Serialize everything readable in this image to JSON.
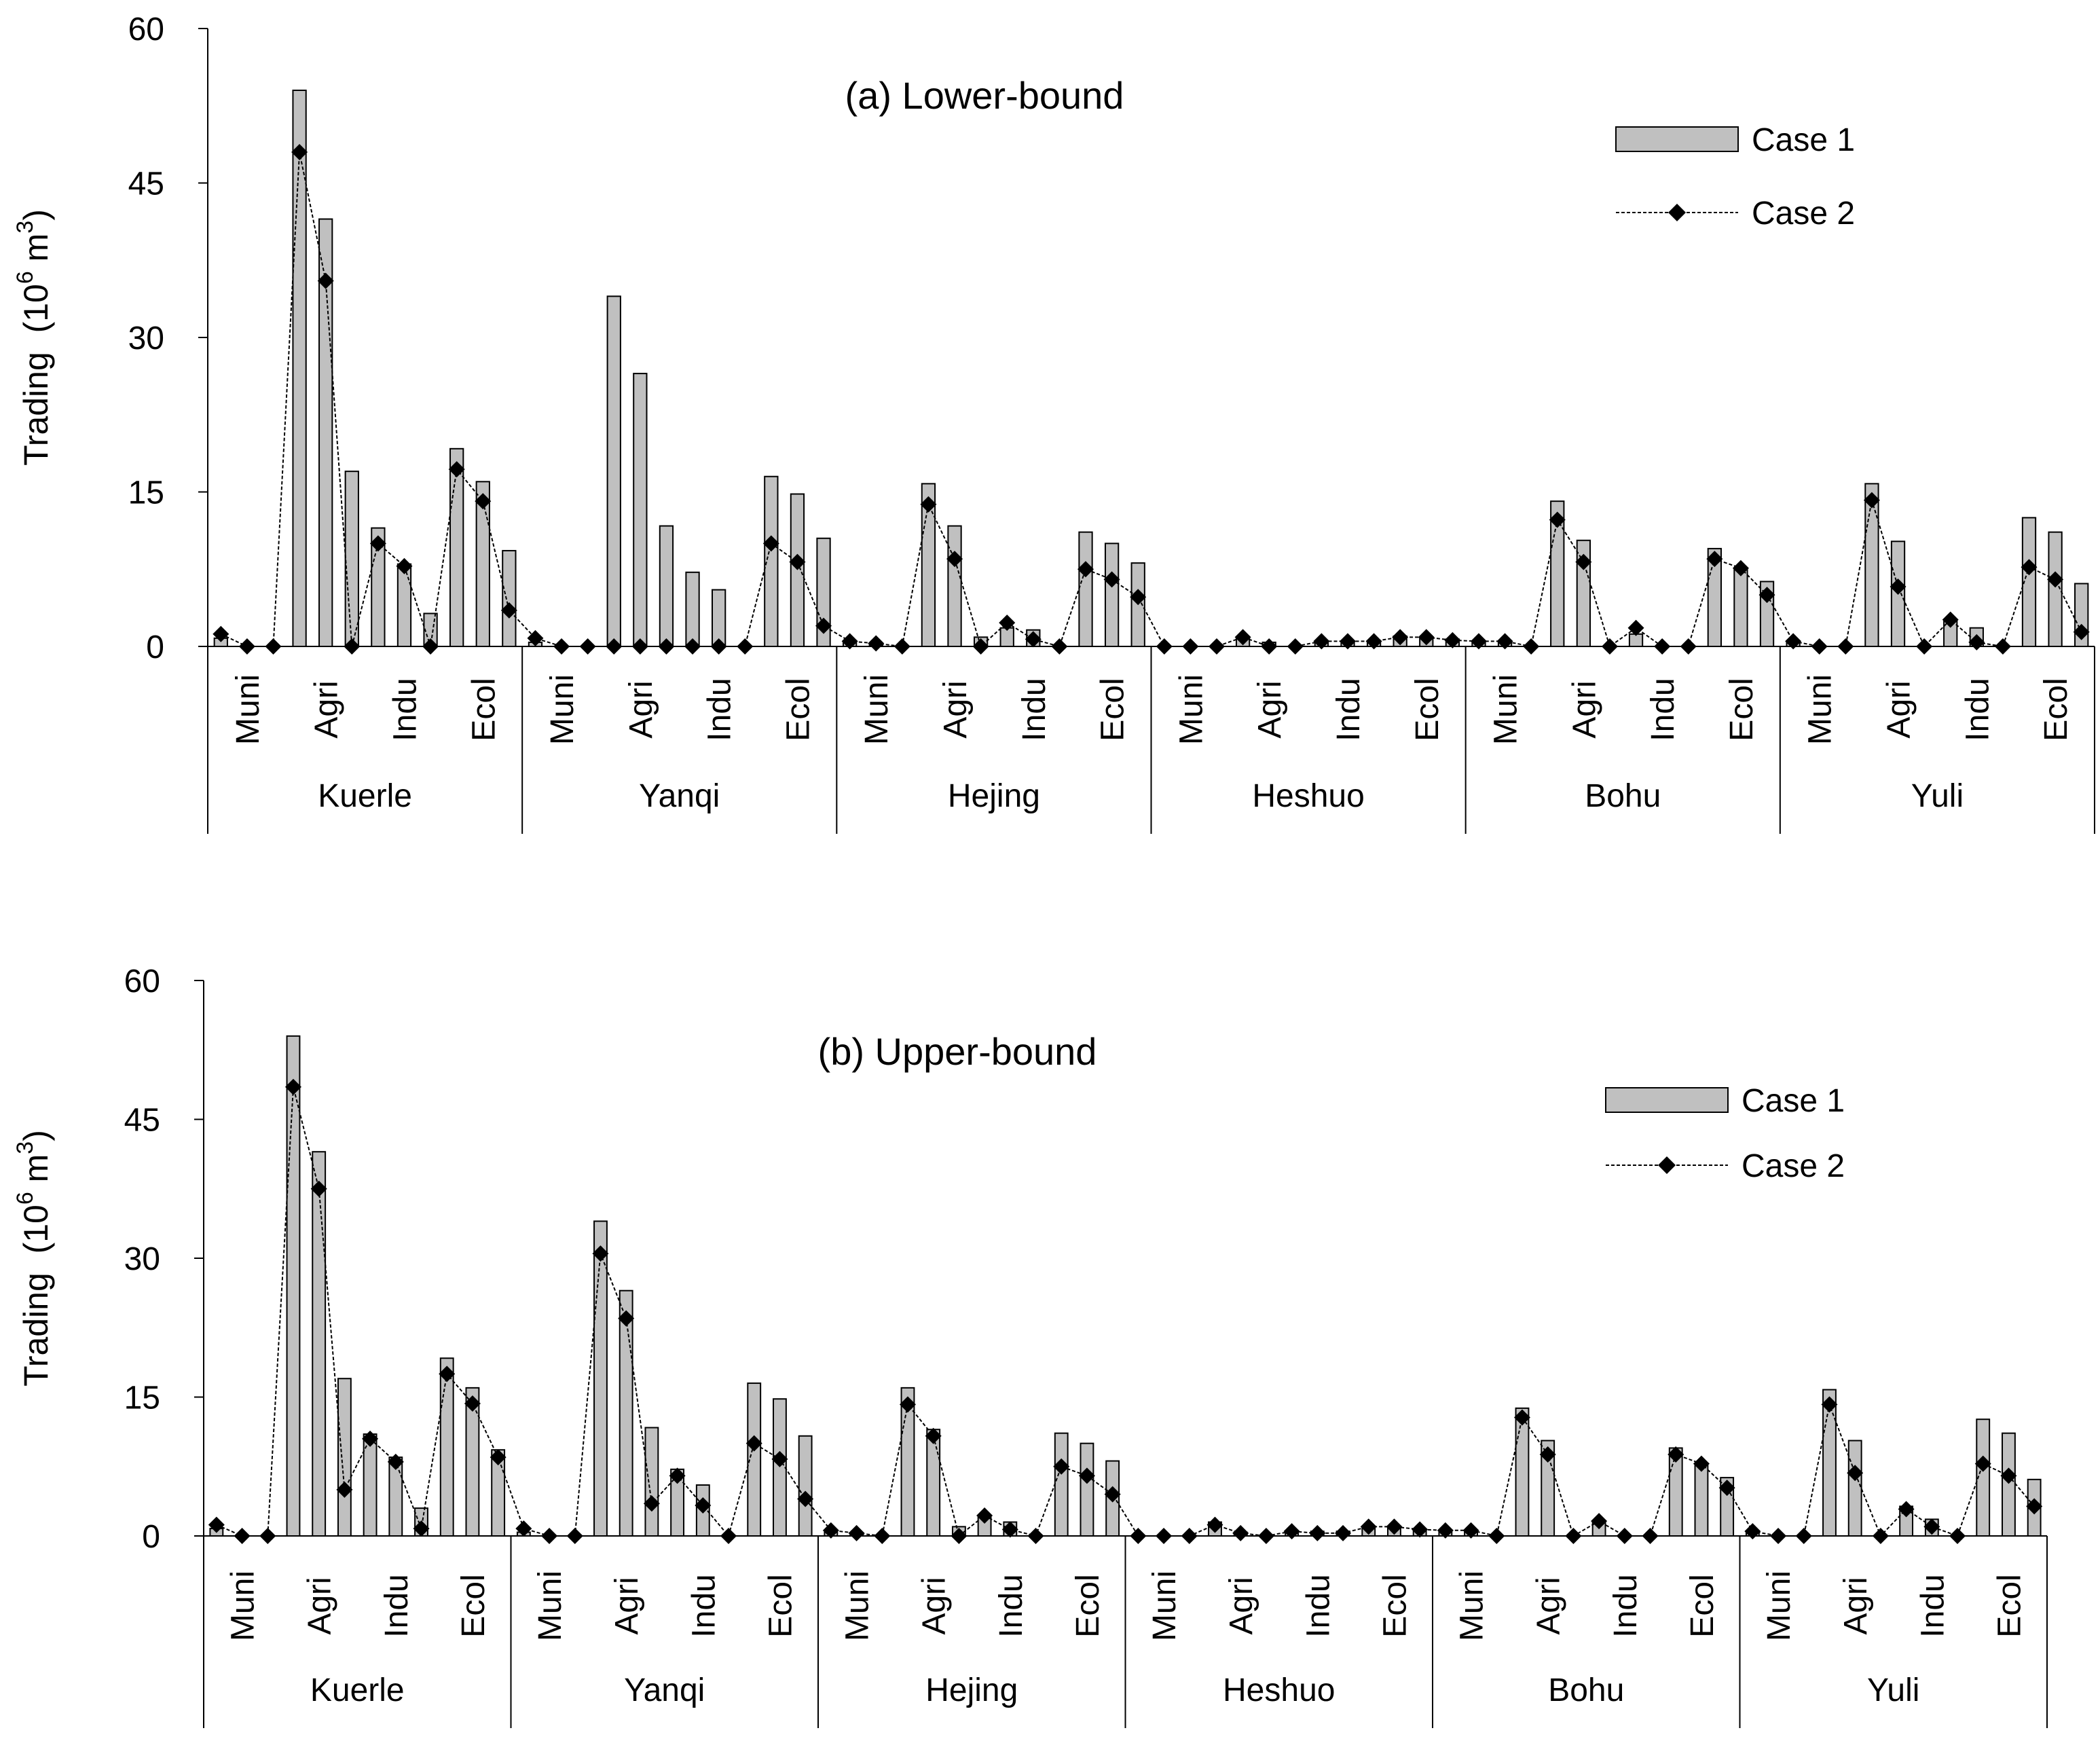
{
  "chart_data": [
    {
      "type": "bar+line",
      "title": "(a) Lower-bound",
      "ylabel": "Trading",
      "yunit_base": "(10",
      "yunit_exp": "6",
      "yunit_mid": " m",
      "yunit_exp2": "3",
      "yunit_close": ")",
      "ylim": [
        0,
        60
      ],
      "yticks": [
        "0",
        "15",
        "30",
        "45",
        "60"
      ],
      "sector_labels": [
        "Muni",
        "Agri",
        "Indu",
        "Ecol"
      ],
      "regions": [
        "Kuerle",
        "Yanqi",
        "Hejing",
        "Heshuo",
        "Bohu",
        "Yuli"
      ],
      "legend": [
        "Case 1",
        "Case 2"
      ],
      "series": [
        {
          "name": "Case 1",
          "values": [
            0.8,
            0,
            0,
            54,
            41.5,
            17,
            11.5,
            8,
            3.2,
            19.2,
            16,
            9.3,
            0.4,
            0,
            0,
            34,
            26.5,
            11.7,
            7.2,
            5.5,
            0,
            16.5,
            14.8,
            10.5,
            0.4,
            0.2,
            0,
            15.8,
            11.7,
            0.9,
            1.8,
            1.6,
            0,
            11.1,
            10,
            8.1,
            0,
            0,
            0,
            0.9,
            0.4,
            0,
            0.5,
            0.5,
            0.5,
            1,
            0.9,
            0.7,
            0.5,
            0.5,
            0,
            14.1,
            10.3,
            0,
            1.2,
            0,
            0,
            9.5,
            7.6,
            6.3,
            0.5,
            0,
            0,
            15.8,
            10.2,
            0,
            2.5,
            1.8,
            0,
            12.5,
            11.1,
            6.1
          ]
        },
        {
          "name": "Case 2",
          "values": [
            1.2,
            0,
            0,
            48,
            35.5,
            0,
            10,
            7.8,
            0,
            17.2,
            14.1,
            3.5,
            0.8,
            0,
            0,
            0,
            0,
            0,
            0,
            0,
            0,
            10,
            8.2,
            2,
            0.5,
            0.3,
            0,
            13.8,
            8.5,
            0,
            2.3,
            0.7,
            0,
            7.5,
            6.5,
            4.8,
            0,
            0,
            0,
            0.9,
            0,
            0,
            0.5,
            0.5,
            0.5,
            0.9,
            0.9,
            0.6,
            0.5,
            0.5,
            0,
            12.3,
            8.2,
            0,
            1.8,
            0,
            0,
            8.5,
            7.6,
            5,
            0.5,
            0,
            0,
            14.2,
            5.8,
            0,
            2.6,
            0.4,
            0,
            7.7,
            6.5,
            1.4
          ]
        }
      ]
    },
    {
      "type": "bar+line",
      "title": "(b) Upper-bound",
      "ylabel": "Trading",
      "yunit_base": "(10",
      "yunit_exp": "6",
      "yunit_mid": " m",
      "yunit_exp2": "3",
      "yunit_close": ")",
      "ylim": [
        0,
        60
      ],
      "yticks": [
        "0",
        "15",
        "30",
        "45",
        "60"
      ],
      "sector_labels": [
        "Muni",
        "Agri",
        "Indu",
        "Ecol"
      ],
      "regions": [
        "Kuerle",
        "Yanqi",
        "Hejing",
        "Heshuo",
        "Bohu",
        "Yuli"
      ],
      "legend": [
        "Case 1",
        "Case 2"
      ],
      "series": [
        {
          "name": "Case 1",
          "values": [
            0.8,
            0,
            0,
            54,
            41.5,
            17,
            11,
            8.5,
            3,
            19.2,
            16,
            9.3,
            0.4,
            0,
            0,
            34,
            26.5,
            11.7,
            7.2,
            5.5,
            0,
            16.5,
            14.8,
            10.8,
            0.4,
            0.2,
            0,
            16,
            11.5,
            1,
            2,
            1.5,
            0,
            11.1,
            10,
            8.1,
            0,
            0,
            0,
            1.5,
            0.4,
            0,
            0.5,
            0.5,
            0.5,
            1,
            0.9,
            0.7,
            0.5,
            0.5,
            0,
            13.8,
            10.3,
            0,
            1.5,
            0,
            0,
            9.5,
            7.6,
            6.3,
            0.5,
            0,
            0,
            15.8,
            10.3,
            0,
            3.2,
            1.8,
            0,
            12.6,
            11.1,
            6.1
          ]
        },
        {
          "name": "Case 2",
          "values": [
            1.2,
            0,
            0,
            48.5,
            37.5,
            5,
            10.5,
            8,
            0.8,
            17.5,
            14.3,
            8.5,
            0.8,
            0,
            0,
            30.5,
            23.5,
            3.5,
            6.5,
            3.3,
            0,
            10,
            8.3,
            4,
            0.6,
            0.3,
            0,
            14.2,
            10.8,
            0,
            2.2,
            0.7,
            0,
            7.5,
            6.5,
            4.5,
            0,
            0,
            0,
            1.2,
            0.3,
            0,
            0.5,
            0.3,
            0.3,
            1,
            1,
            0.7,
            0.6,
            0.6,
            0,
            12.8,
            8.8,
            0,
            1.6,
            0,
            0,
            8.8,
            7.8,
            5.2,
            0.5,
            0,
            0,
            14.2,
            6.8,
            0,
            2.9,
            1,
            0,
            7.8,
            6.5,
            3.2
          ]
        }
      ]
    }
  ]
}
